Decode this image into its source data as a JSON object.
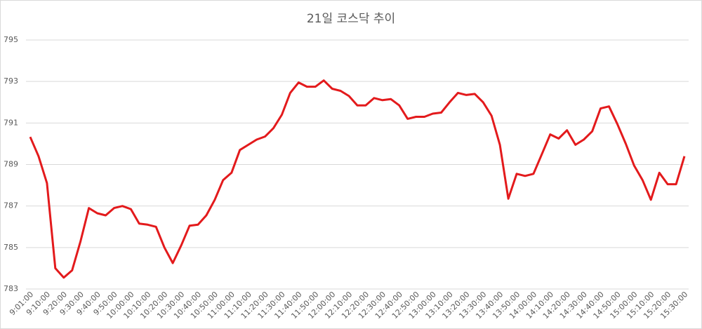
{
  "chart_data": {
    "type": "line",
    "title": "21일 코스닥 추이",
    "categories": [
      "9:01:00",
      null,
      "9:10:00",
      null,
      "9:20:00",
      null,
      "9:30:00",
      null,
      "9:40:00",
      null,
      "9:50:00",
      null,
      "10:00:00",
      null,
      "10:10:00",
      null,
      "10:20:00",
      null,
      "10:30:00",
      null,
      "10:40:00",
      null,
      "10:50:00",
      null,
      "11:00:00",
      null,
      "11:10:00",
      null,
      "11:20:00",
      null,
      "11:30:00",
      null,
      "11:40:00",
      null,
      "11:50:00",
      null,
      "12:00:00",
      null,
      "12:10:00",
      null,
      "12:20:00",
      null,
      "12:30:00",
      null,
      "12:40:00",
      null,
      "12:50:00",
      null,
      "13:00:00",
      null,
      "13:10:00",
      null,
      "13:20:00",
      null,
      "13:30:00",
      null,
      "13:40:00",
      null,
      "13:50:00",
      null,
      "14:00:00",
      null,
      "14:10:00",
      null,
      "14:20:00",
      null,
      "14:30:00",
      null,
      "14:40:00",
      null,
      "14:50:00",
      null,
      "15:00:00",
      null,
      "15:10:00",
      null,
      "15:20:00",
      null,
      "15:30:00"
    ],
    "values": [
      790.33,
      789.4,
      788.1,
      784.0,
      783.55,
      783.9,
      785.3,
      786.9,
      786.65,
      786.55,
      786.9,
      787.0,
      786.85,
      786.15,
      786.1,
      786.0,
      785.0,
      784.25,
      785.1,
      786.05,
      786.1,
      786.55,
      787.3,
      788.25,
      788.6,
      789.7,
      789.95,
      790.2,
      790.35,
      790.75,
      791.4,
      792.45,
      792.95,
      792.75,
      792.75,
      793.05,
      792.65,
      792.55,
      792.3,
      791.85,
      791.85,
      792.2,
      792.1,
      792.15,
      791.85,
      791.2,
      791.3,
      791.3,
      791.45,
      791.5,
      792.0,
      792.45,
      792.35,
      792.4,
      792.0,
      791.35,
      789.95,
      787.35,
      788.55,
      788.45,
      788.55,
      789.5,
      790.45,
      790.25,
      790.65,
      789.95,
      790.2,
      790.6,
      791.7,
      791.8,
      790.95,
      790.0,
      788.95,
      788.25,
      787.3,
      788.6,
      788.05,
      788.05,
      789.4
    ],
    "color": "#e31a1c",
    "ylim": [
      783,
      795
    ],
    "yticks": [
      783,
      785,
      787,
      789,
      791,
      793,
      795
    ],
    "grid": true
  }
}
